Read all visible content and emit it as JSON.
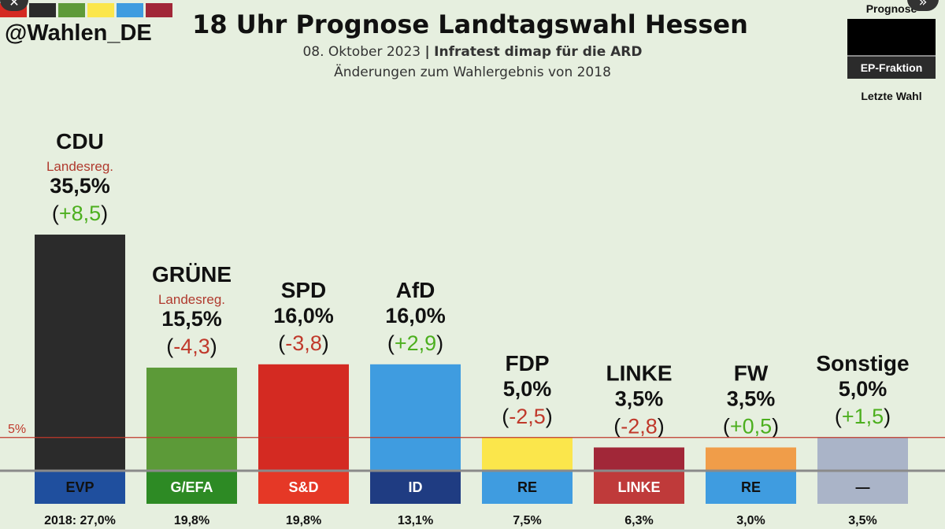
{
  "header": {
    "handle": "@Wahlen_DE",
    "swatch_colors": [
      "#d42a22",
      "#2b2b2b",
      "#5e9a39",
      "#fbe64b",
      "#3f9ce0",
      "#a12738"
    ],
    "title": "18 Uhr Prognose Landtagswahl Hessen",
    "subtitle_date": "08. Oktober 2023",
    "subtitle_sep": "|",
    "subtitle_source": "Infratest dimap für die ARD",
    "subtitle2": "Änderungen zum Wahlergebnis von 2018",
    "close_icon": "close-icon",
    "more_icon": "chevron-double-right-icon"
  },
  "legend": {
    "top": "Prognose",
    "bar": "EP-Fraktion",
    "bottom": "Letzte Wahl"
  },
  "chart_data": {
    "type": "bar",
    "title": "18 Uhr Prognose Landtagswahl Hessen",
    "ylim": [
      0,
      40
    ],
    "threshold": {
      "value": 5,
      "label": "5%",
      "color": "#c0392b"
    },
    "categories": [
      "CDU",
      "GRÜNE",
      "SPD",
      "AfD",
      "FDP",
      "LINKE",
      "FW",
      "Sonstige"
    ],
    "values": [
      35.5,
      15.5,
      16.0,
      16.0,
      5.0,
      3.5,
      3.5,
      5.0
    ],
    "value_labels": [
      "35,5%",
      "15,5%",
      "16,0%",
      "16,0%",
      "5,0%",
      "3,5%",
      "3,5%",
      "5,0%"
    ],
    "changes": [
      8.5,
      -4.3,
      -3.8,
      2.9,
      -2.5,
      -2.8,
      0.5,
      1.5
    ],
    "change_labels": [
      "+8,5",
      "-4,3",
      "-3,8",
      "+2,9",
      "-2,5",
      "-2,8",
      "+0,5",
      "+1,5"
    ],
    "notes": [
      "Landesreg.",
      "Landesreg.",
      "",
      "",
      "",
      "",
      "",
      ""
    ],
    "colors": [
      "#2b2b2b",
      "#5c9a38",
      "#d42a22",
      "#3f9ce0",
      "#fbe64b",
      "#a12738",
      "#f09d49",
      "#aab4c8"
    ],
    "ep_groups": [
      "EVP",
      "G/EFA",
      "S&D",
      "ID",
      "RE",
      "LINKE",
      "RE",
      "—"
    ],
    "ep_colors": [
      "#1f4f9e",
      "#2d8a24",
      "#e53826",
      "#1f3c82",
      "#3f9ce0",
      "#bf3a3a",
      "#3f9ce0",
      "#aab4c8"
    ],
    "ep_text_colors": [
      "#111",
      "#fff",
      "#fff",
      "#fff",
      "#111",
      "#fff",
      "#111",
      "#111"
    ],
    "previous_prefix": "2018: ",
    "previous_labels": [
      "27,0%",
      "19,8%",
      "19,8%",
      "13,1%",
      "7,5%",
      "6,3%",
      "3,0%",
      "3,5%"
    ],
    "positive_color": "#4caf1e",
    "negative_color": "#c0392b"
  }
}
